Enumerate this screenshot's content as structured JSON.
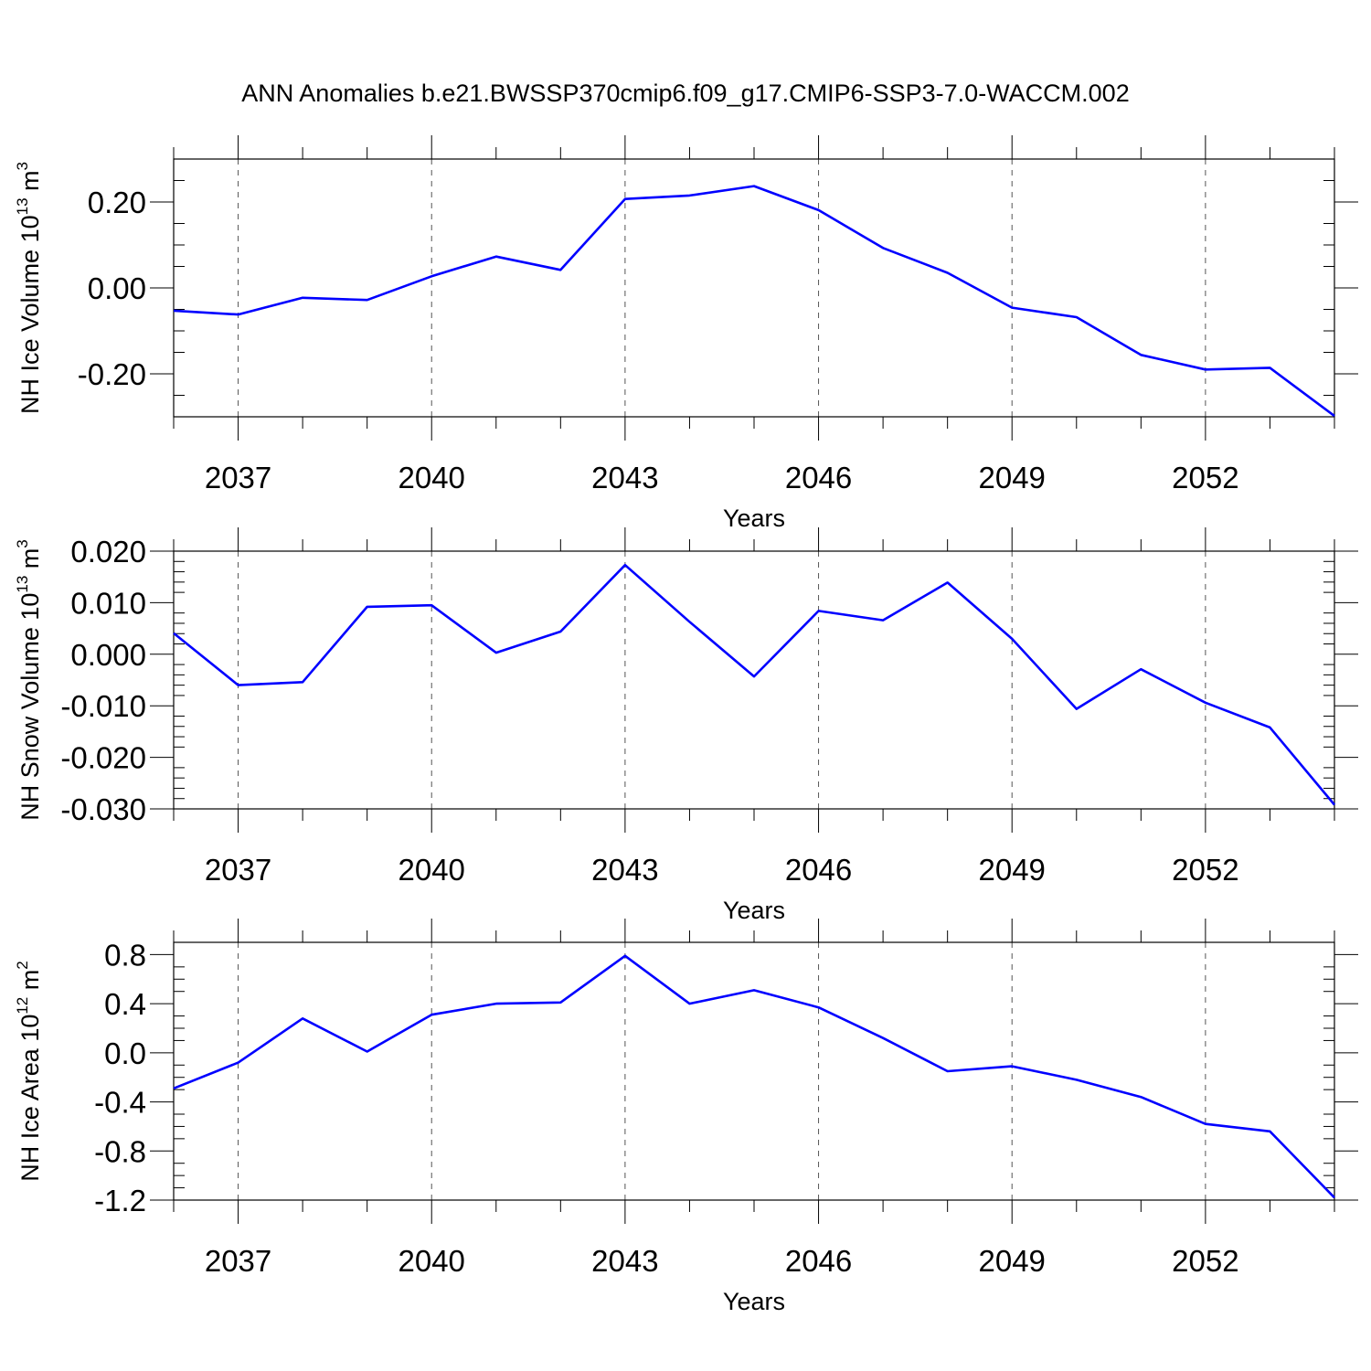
{
  "title": "ANN Anomalies b.e21.BWSSP370cmip6.f09_g17.CMIP6-SSP3-7.0-WACCM.002",
  "chart_data": [
    {
      "type": "line",
      "ylabel_main": "NH Ice Volume 10",
      "ylabel_exp": "13",
      "ylabel_unit": " m",
      "ylabel_unit_exp": "3",
      "xlabel": "Years",
      "color": "#0000ff",
      "xlim": [
        2036,
        2054
      ],
      "ylim": [
        -0.3,
        0.3
      ],
      "x_ticks": [
        2037,
        2040,
        2043,
        2046,
        2049,
        2052
      ],
      "y_ticks": [
        -0.2,
        0.0,
        0.2
      ],
      "y_tick_labels": [
        "-0.20",
        "0.00",
        "0.20"
      ],
      "y_minor_step": 0.05,
      "x": [
        2036,
        2037,
        2038,
        2039,
        2040,
        2041,
        2042,
        2043,
        2044,
        2045,
        2046,
        2047,
        2048,
        2049,
        2050,
        2051,
        2052,
        2053,
        2054
      ],
      "values": [
        -0.053,
        -0.062,
        -0.023,
        -0.028,
        0.027,
        0.073,
        0.042,
        0.207,
        0.215,
        0.237,
        0.181,
        0.093,
        0.035,
        -0.046,
        -0.068,
        -0.156,
        -0.19,
        -0.186,
        -0.298
      ]
    },
    {
      "type": "line",
      "ylabel_main": "NH Snow Volume 10",
      "ylabel_exp": "13",
      "ylabel_unit": " m",
      "ylabel_unit_exp": "3",
      "xlabel": "Years",
      "color": "#0000ff",
      "xlim": [
        2036,
        2054
      ],
      "ylim": [
        -0.03,
        0.02
      ],
      "x_ticks": [
        2037,
        2040,
        2043,
        2046,
        2049,
        2052
      ],
      "y_ticks": [
        -0.03,
        -0.02,
        -0.01,
        0.0,
        0.01,
        0.02
      ],
      "y_tick_labels": [
        "-0.030",
        "-0.020",
        "-0.010",
        "0.000",
        "0.010",
        "0.020"
      ],
      "y_minor_step": 0.002,
      "x": [
        2036,
        2037,
        2038,
        2039,
        2040,
        2041,
        2042,
        2043,
        2044,
        2045,
        2046,
        2047,
        2048,
        2049,
        2050,
        2051,
        2052,
        2053,
        2054
      ],
      "values": [
        0.0041,
        -0.006,
        -0.0054,
        0.0092,
        0.0095,
        0.0003,
        0.0044,
        0.0173,
        0.0063,
        -0.0043,
        0.0084,
        0.0066,
        0.0139,
        0.003,
        -0.0106,
        -0.0029,
        -0.0094,
        -0.0142,
        -0.0292
      ]
    },
    {
      "type": "line",
      "ylabel_main": "NH Ice Area 10",
      "ylabel_exp": "12",
      "ylabel_unit": " m",
      "ylabel_unit_exp": "2",
      "xlabel": "Years",
      "color": "#0000ff",
      "xlim": [
        2036,
        2054
      ],
      "ylim": [
        -1.2,
        0.9
      ],
      "x_ticks": [
        2037,
        2040,
        2043,
        2046,
        2049,
        2052
      ],
      "y_ticks": [
        -1.2,
        -0.8,
        -0.4,
        0.0,
        0.4,
        0.8
      ],
      "y_tick_labels": [
        "-1.2",
        "-0.8",
        "-0.4",
        "0.0",
        "0.4",
        "0.8"
      ],
      "y_minor_step": 0.1,
      "x": [
        2036,
        2037,
        2038,
        2039,
        2040,
        2041,
        2042,
        2043,
        2044,
        2045,
        2046,
        2047,
        2048,
        2049,
        2050,
        2051,
        2052,
        2053,
        2054
      ],
      "values": [
        -0.29,
        -0.08,
        0.28,
        0.01,
        0.31,
        0.4,
        0.41,
        0.79,
        0.4,
        0.51,
        0.37,
        0.12,
        -0.15,
        -0.11,
        -0.22,
        -0.36,
        -0.58,
        -0.64,
        -1.18
      ]
    }
  ]
}
